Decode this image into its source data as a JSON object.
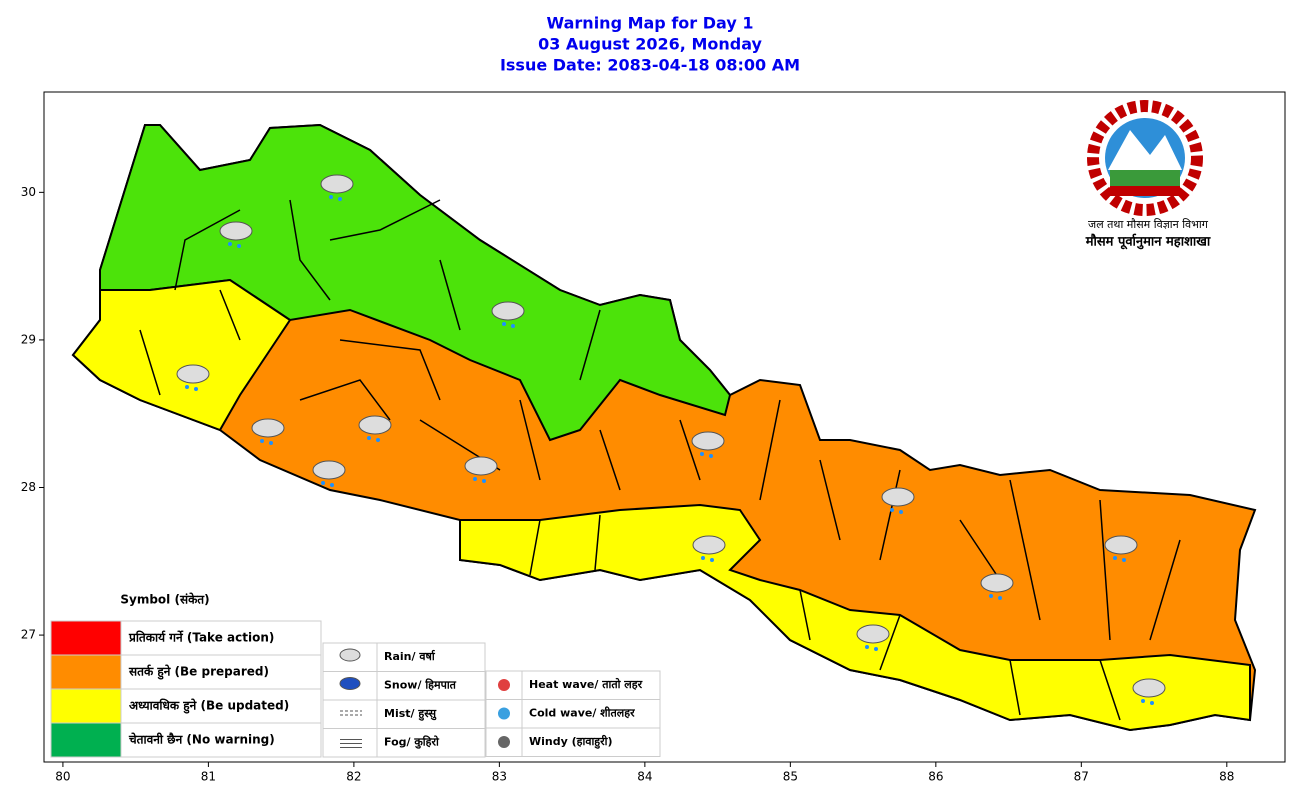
{
  "header": {
    "lines": [
      "Warning Map for Day 1",
      "03 August 2026, Monday",
      "Issue Date: 2083-04-18 08:00 AM"
    ]
  },
  "axes": {
    "xlim": [
      79.87,
      88.4
    ],
    "ylim": [
      26.14,
      30.68
    ],
    "xticks": [
      80,
      81,
      82,
      83,
      84,
      85,
      86,
      87,
      88
    ],
    "yticks": [
      27,
      28,
      29,
      30
    ]
  },
  "organization": {
    "department": "जल तथा मौसम विज्ञान विभाग",
    "division": "मौसम पूर्वानुमान महाशाखा"
  },
  "legend": {
    "title": "Symbol (संकेत)",
    "levels": [
      {
        "color": "#ff0000",
        "label": "प्रतिकार्य गर्ने (Take action)"
      },
      {
        "color": "#ff8c00",
        "label": "सतर्क हुने (Be prepared)"
      },
      {
        "color": "#ffff00",
        "label": "अध्यावधिक हुने (Be updated)"
      },
      {
        "color": "#00b050",
        "label": "चेतावनी छैन (No warning)"
      }
    ],
    "symbols": [
      "Rain/ वर्षा",
      "Snow/ हिमपात",
      "Mist/ हुस्सु",
      "Fog/ कुहिरो"
    ],
    "hazards": [
      "Heat wave/ तातो लहर",
      "Cold wave/ शीतलहर",
      "Windy (हावाहुरी)"
    ]
  }
}
